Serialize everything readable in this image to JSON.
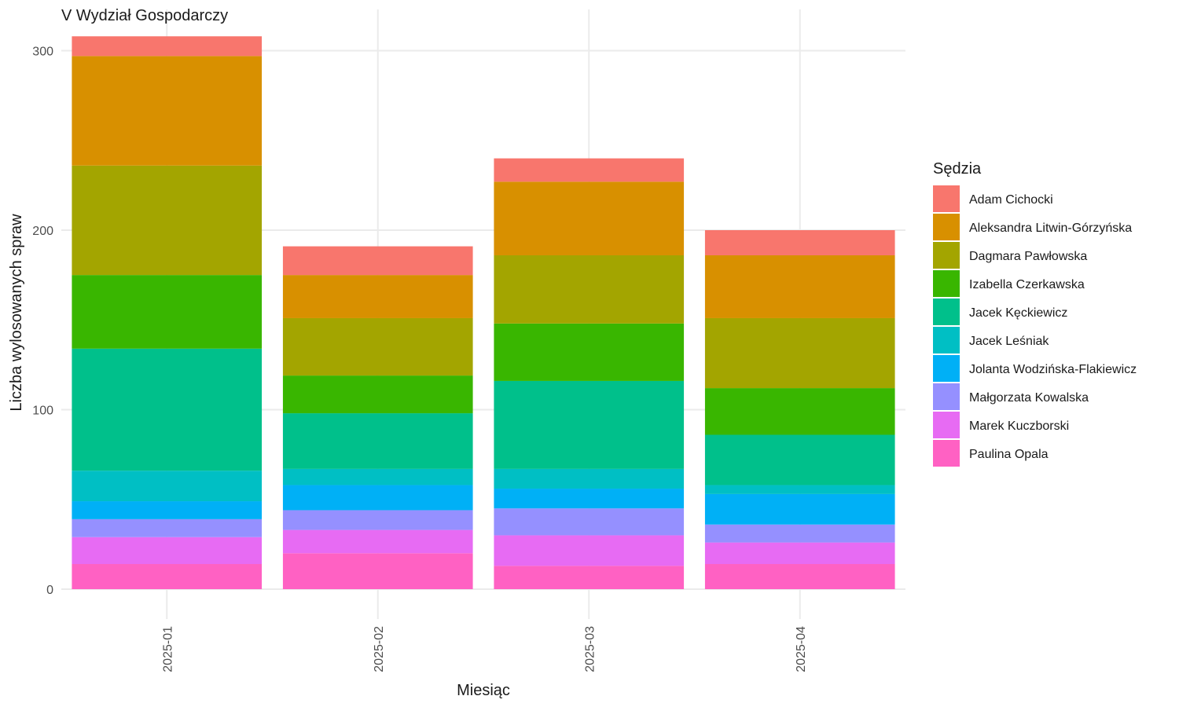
{
  "chart_data": {
    "type": "bar",
    "stacked": true,
    "title": "V Wydział Gospodarczy",
    "xlabel": "Miesiąc",
    "ylabel": "Liczba wylosowanych spraw",
    "ylim": [
      -4,
      313
    ],
    "yticks": [
      0,
      100,
      200,
      300
    ],
    "categories": [
      "2025-01",
      "2025-02",
      "2025-03",
      "2025-04"
    ],
    "legend": {
      "title": "Sędzia",
      "position": "right"
    },
    "grid": true,
    "series": [
      {
        "name": "Paulina Opala",
        "color": "#FF61C3",
        "values": [
          14,
          20,
          13,
          14
        ]
      },
      {
        "name": "Marek Kuczborski",
        "color": "#E76BF3",
        "values": [
          15,
          13,
          17,
          12
        ]
      },
      {
        "name": "Małgorzata Kowalska",
        "color": "#9590FF",
        "values": [
          10,
          11,
          15,
          10
        ]
      },
      {
        "name": "Jolanta Wodzińska-Flakiewicz",
        "color": "#00B0F6",
        "values": [
          10,
          14,
          11,
          17
        ]
      },
      {
        "name": "Jacek Leśniak",
        "color": "#00BFC4",
        "values": [
          17,
          9,
          11,
          5
        ]
      },
      {
        "name": "Jacek Kęckiewicz",
        "color": "#00C08B",
        "values": [
          68,
          31,
          49,
          28
        ]
      },
      {
        "name": "Izabella Czerkawska",
        "color": "#39B600",
        "values": [
          41,
          21,
          32,
          26
        ]
      },
      {
        "name": "Dagmara Pawłowska",
        "color": "#A3A500",
        "values": [
          61,
          32,
          38,
          39
        ]
      },
      {
        "name": "Aleksandra Litwin-Górzyńska",
        "color": "#D89000",
        "values": [
          61,
          24,
          41,
          35
        ]
      },
      {
        "name": "Adam Cichocki",
        "color": "#F8766D",
        "values": [
          11,
          16,
          13,
          14
        ]
      }
    ]
  }
}
